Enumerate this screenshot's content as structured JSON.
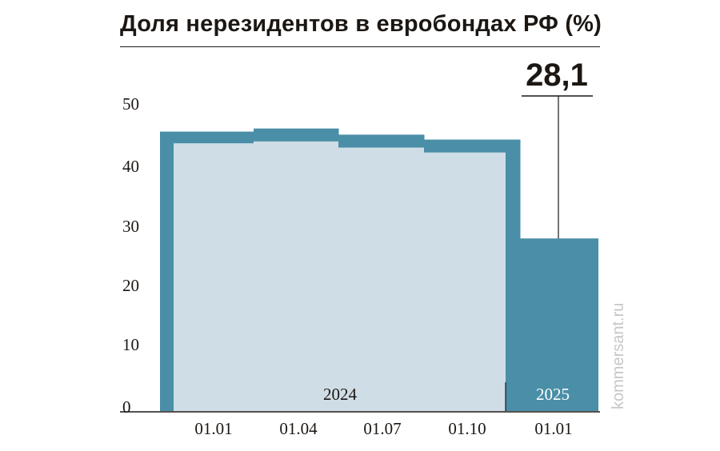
{
  "title": "Доля нерезидентов в евробондах РФ (%)",
  "source": "kommersant.ru",
  "colors": {
    "outer": "#4a8ea7",
    "inner": "#cfdde6",
    "text": "#1c1713",
    "year_2025_text": "#ffffff"
  },
  "chart_data": {
    "type": "area",
    "title": "Доля нерезидентов в евробондах РФ (%)",
    "ylim": [
      0,
      50
    ],
    "y_ticks": [
      "0",
      "10",
      "20",
      "30",
      "40",
      "50"
    ],
    "x_ticks": [
      "01.01",
      "01.04",
      "01.07",
      "01.10",
      "01.01"
    ],
    "years": [
      "2024",
      "2025"
    ],
    "series": [
      {
        "steps": [
          {
            "from": "01.01.2024",
            "to": "01.04.2024",
            "value": 45.5
          },
          {
            "from": "01.04.2024",
            "to": "01.07.2024",
            "value": 46.0
          },
          {
            "from": "01.07.2024",
            "to": "01.10.2024",
            "value": 45.0
          },
          {
            "from": "01.10.2024",
            "to": "01.01.2025",
            "value": 44.2
          },
          {
            "from": "01.01.2025",
            "to": "01.04.2025",
            "value": 28.1
          }
        ]
      },
      {
        "steps": [
          {
            "from": "01.01.2024",
            "to": "01.04.2024",
            "value": 43.6
          },
          {
            "from": "01.04.2024",
            "to": "01.07.2024",
            "value": 43.9
          },
          {
            "from": "01.07.2024",
            "to": "01.10.2024",
            "value": 42.9
          },
          {
            "from": "01.10.2024",
            "to": "01.01.2025",
            "value": 42.1
          }
        ]
      }
    ],
    "annotation": {
      "label": "28,1",
      "value": 28.1
    }
  }
}
